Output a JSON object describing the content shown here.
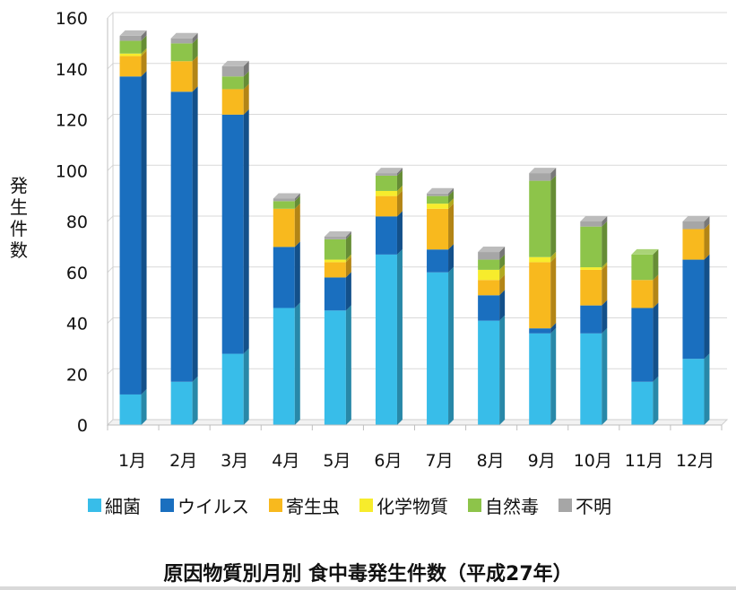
{
  "chart_data": {
    "type": "bar",
    "stacked": true,
    "title": "原因物質別月別 食中毒発生件数（平成27年）",
    "ylabel": "発生件数",
    "xlabel": "",
    "ylim": [
      0,
      160
    ],
    "yticks": [
      0,
      20,
      40,
      60,
      80,
      100,
      120,
      140,
      160
    ],
    "grid": true,
    "legend_position": "bottom",
    "categories": [
      "1月",
      "2月",
      "3月",
      "4月",
      "5月",
      "6月",
      "7月",
      "8月",
      "9月",
      "10月",
      "11月",
      "12月"
    ],
    "series": [
      {
        "name": "細菌",
        "color": "#38bde9",
        "values": [
          12,
          17,
          28,
          46,
          45,
          67,
          60,
          41,
          36,
          36,
          17,
          26
        ]
      },
      {
        "name": "ウイルス",
        "color": "#1a6fbf",
        "values": [
          125,
          114,
          94,
          24,
          13,
          15,
          9,
          10,
          2,
          11,
          29,
          39
        ]
      },
      {
        "name": "寄生虫",
        "color": "#f8b91e",
        "values": [
          8,
          12,
          10,
          15,
          6,
          8,
          16,
          6,
          26,
          14,
          11,
          12
        ]
      },
      {
        "name": "化学物質",
        "color": "#f7ec2c",
        "values": [
          1,
          0,
          0,
          0,
          1,
          2,
          2,
          4,
          2,
          1,
          0,
          0
        ]
      },
      {
        "name": "自然毒",
        "color": "#8dc44a",
        "values": [
          5,
          7,
          5,
          3,
          8,
          6,
          3,
          4,
          30,
          16,
          10,
          0
        ]
      },
      {
        "name": "不明",
        "color": "#a6a6a6",
        "values": [
          2,
          2,
          4,
          1,
          1,
          1,
          1,
          3,
          3,
          2,
          0,
          3
        ]
      }
    ]
  }
}
